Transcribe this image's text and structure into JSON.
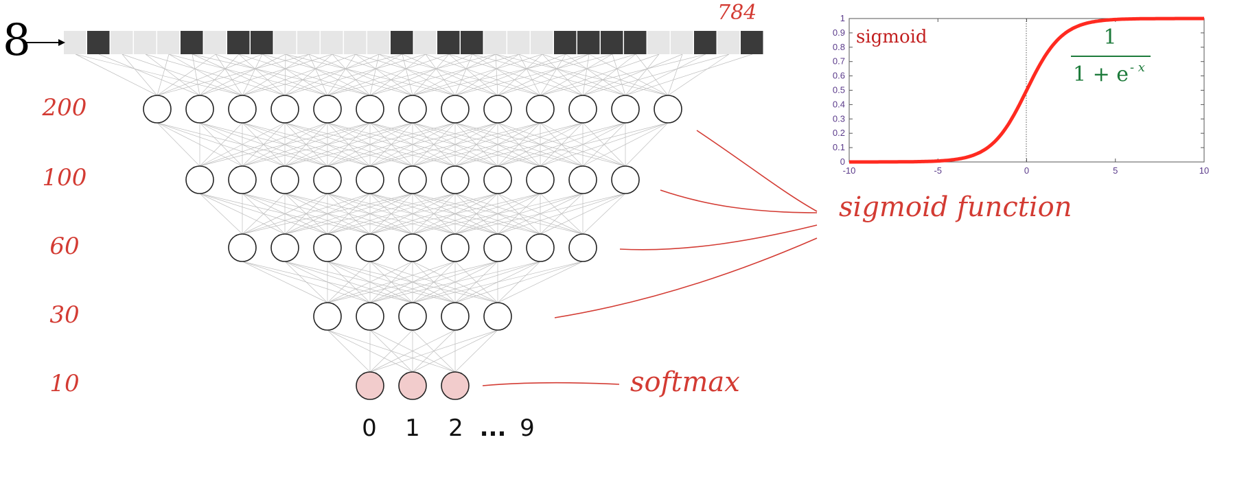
{
  "input": {
    "digit_glyph": "8",
    "size_label": "784",
    "cells": [
      0,
      1,
      0,
      0,
      0,
      1,
      0,
      1,
      1,
      0,
      0,
      0,
      0,
      0,
      1,
      0,
      1,
      1,
      0,
      0,
      0,
      1,
      1,
      1,
      1,
      0,
      0,
      1,
      0,
      1
    ]
  },
  "layers": [
    {
      "label": "200",
      "nodes": 13
    },
    {
      "label": "100",
      "nodes": 11
    },
    {
      "label": "60",
      "nodes": 9
    },
    {
      "label": "30",
      "nodes": 5
    },
    {
      "label": "10",
      "nodes": 3
    }
  ],
  "outputs": [
    "0",
    "1",
    "2",
    "...",
    "9"
  ],
  "annotations": {
    "sigmoid_function": "sigmoid function",
    "softmax": "softmax"
  },
  "colors": {
    "dark_cell": "#3a3a3a",
    "light_cell": "#e6e6e6",
    "edge": "#bdbdbd",
    "node_stroke": "#222222",
    "output_fill": "#f2cccc",
    "annotation_red": "#d33b33",
    "curve_red": "#ff2a20",
    "formula_green": "#1c7a3a",
    "axis_purple": "#5a3a8a"
  },
  "chart_data": {
    "type": "line",
    "title": "sigmoid",
    "formula_numerator": "1",
    "formula_denominator": "1 + e",
    "formula_exponent": "- x",
    "xlim": [
      -10,
      10
    ],
    "ylim": [
      0,
      1
    ],
    "x_ticks": [
      "-10",
      "-5",
      "0",
      "5",
      "10"
    ],
    "y_ticks": [
      "0",
      "0.1",
      "0.2",
      "0.3",
      "0.4",
      "0.5",
      "0.6",
      "0.7",
      "0.8",
      "0.9",
      "1"
    ],
    "function": "1/(1+e^-x)"
  }
}
